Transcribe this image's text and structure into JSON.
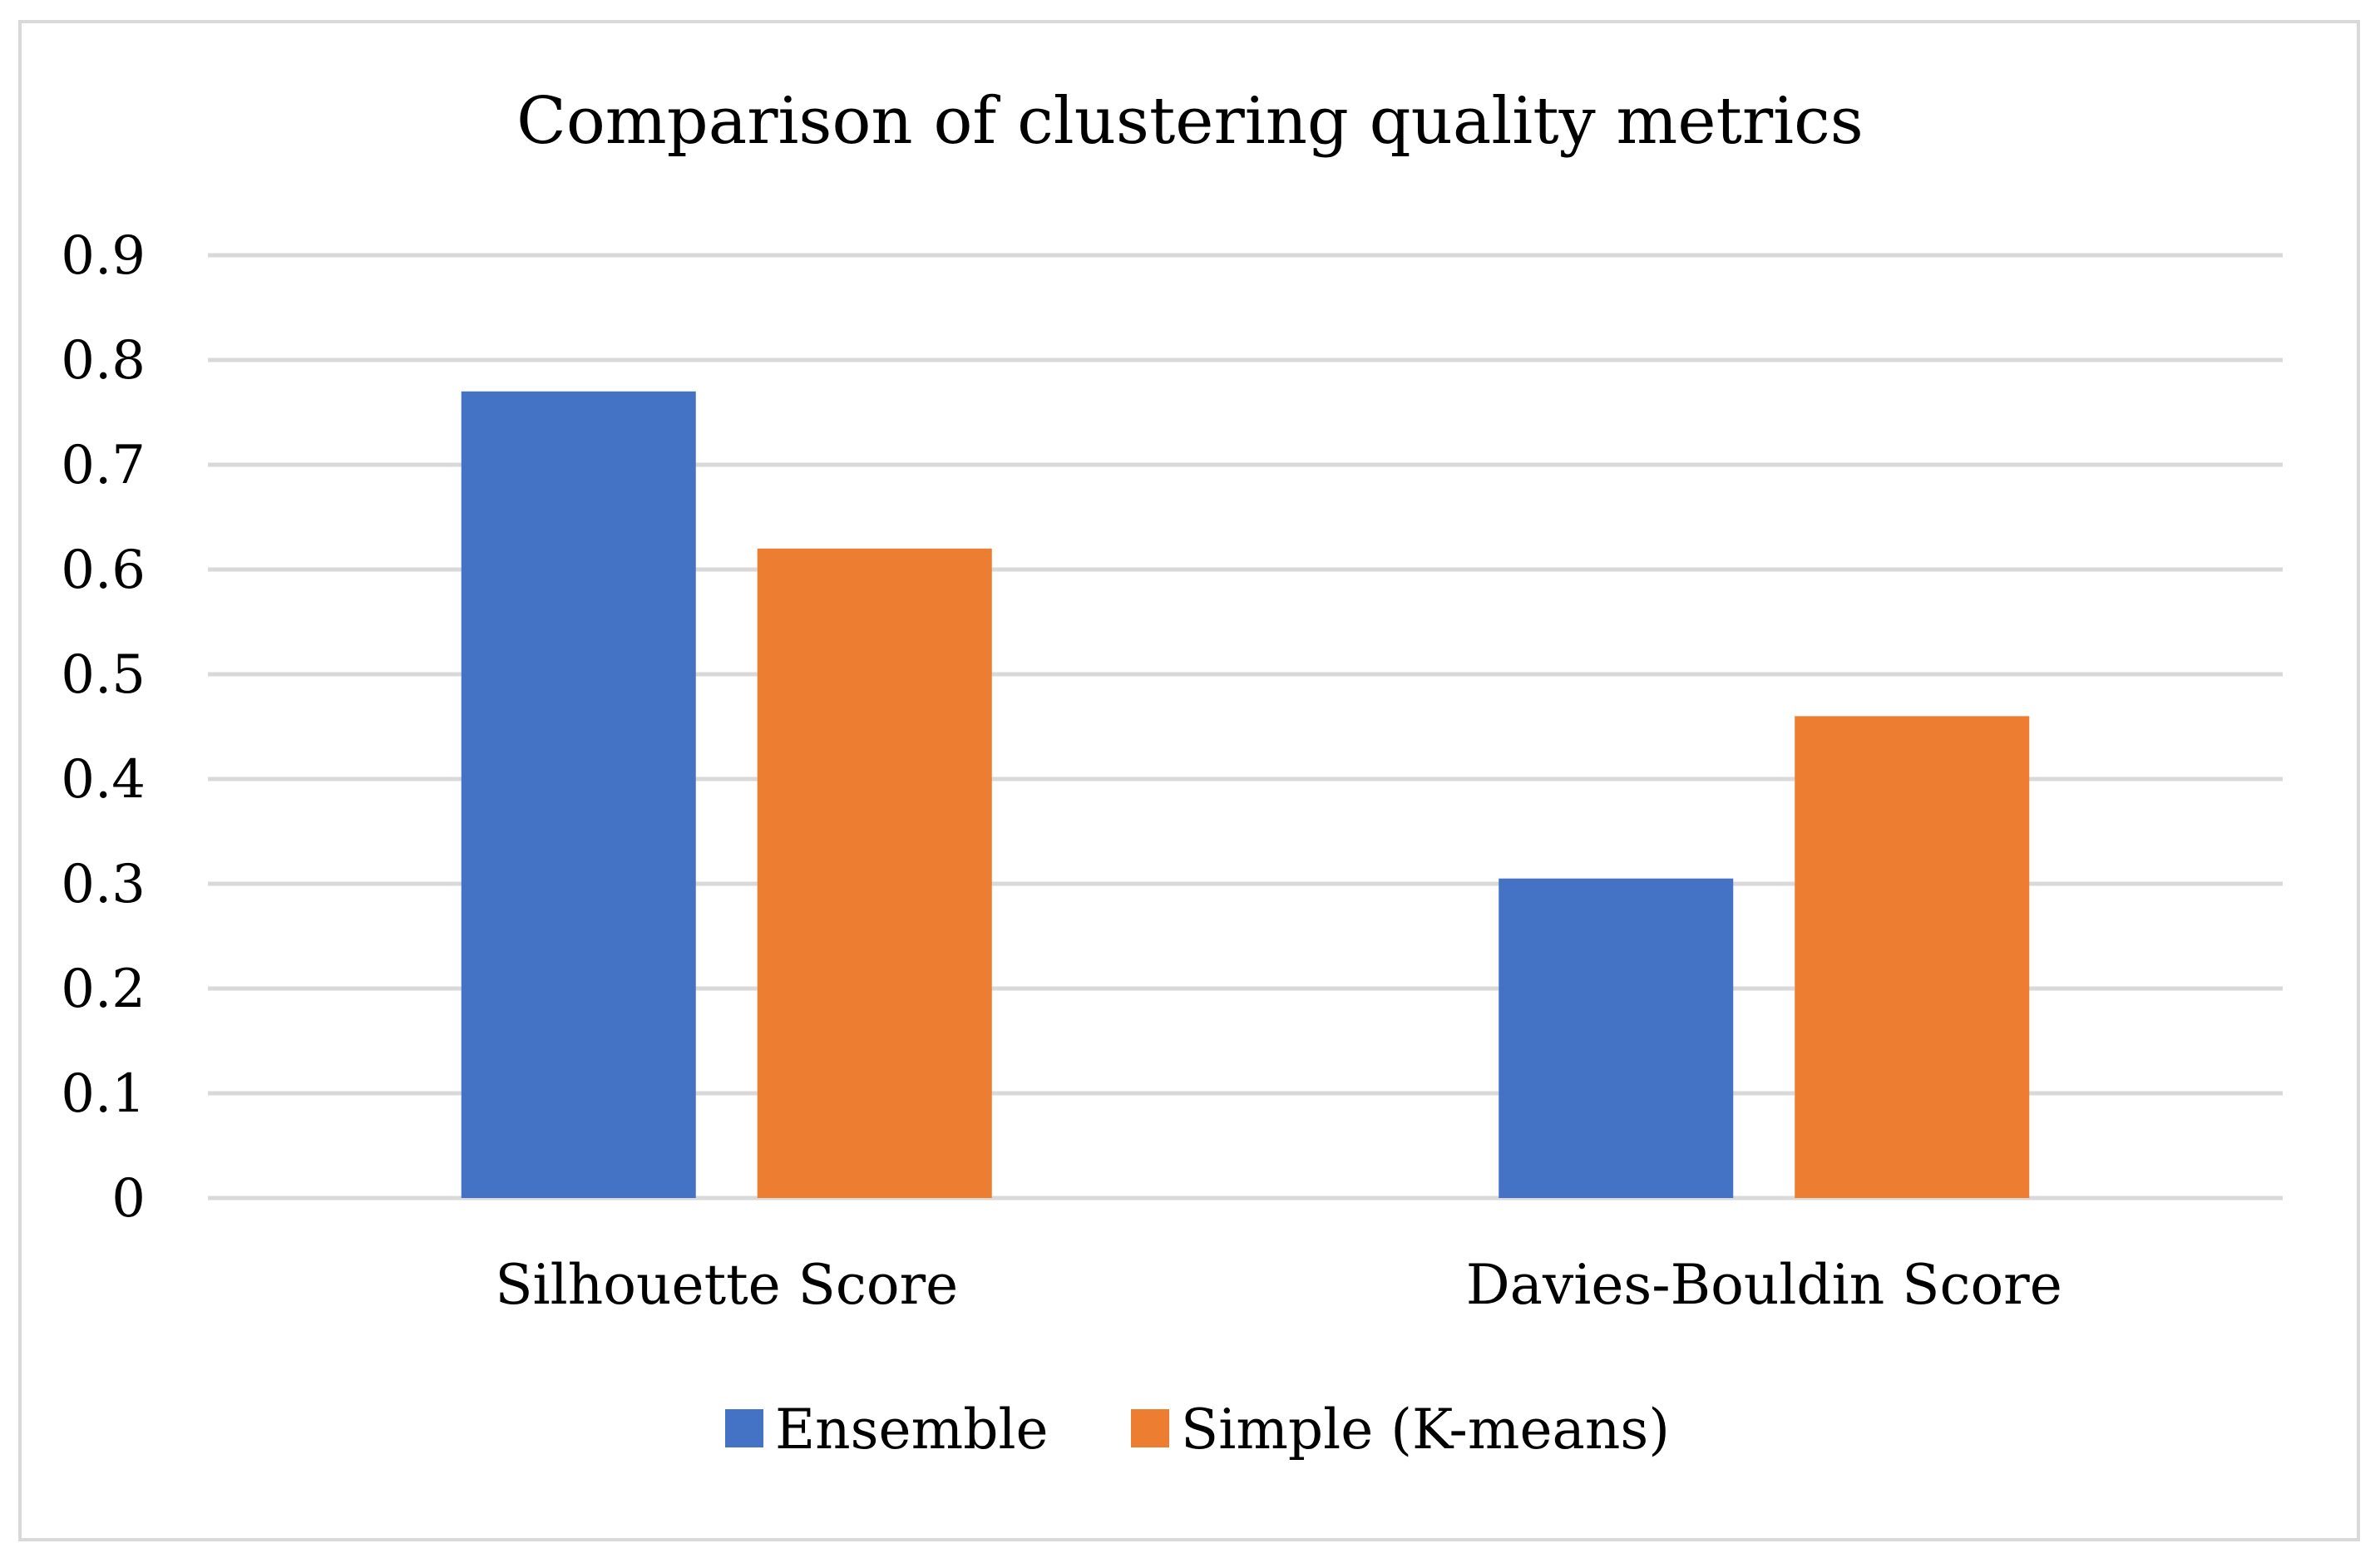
{
  "chart_data": {
    "type": "bar",
    "title": "Comparison of clustering quality metrics",
    "categories": [
      "Silhouette Score",
      "Davies-Bouldin Score"
    ],
    "series": [
      {
        "name": "Ensemble",
        "values": [
          0.77,
          0.305
        ],
        "color": "#4472C4"
      },
      {
        "name": "Simple (K-means)",
        "values": [
          0.62,
          0.46
        ],
        "color": "#ED7D31"
      }
    ],
    "y_ticks": [
      "0",
      "0.1",
      "0.2",
      "0.3",
      "0.4",
      "0.5",
      "0.6",
      "0.7",
      "0.8",
      "0.9"
    ],
    "ylim": [
      0,
      0.9
    ],
    "grid": true,
    "gridline_color": "#d9d9d9",
    "legend_position": "bottom"
  }
}
